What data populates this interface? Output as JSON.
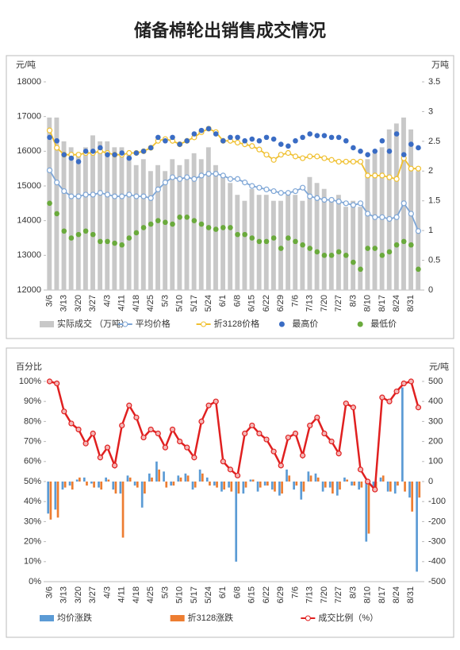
{
  "title": "储备棉轮出销售成交情况",
  "chart_data": [
    {
      "type": "combo",
      "ylabel": "元/吨",
      "y2label": "万吨",
      "categories": [
        "3/6",
        null,
        "3/13",
        null,
        "3/20",
        null,
        "3/27",
        null,
        "4/3",
        null,
        "4/11",
        null,
        "4/18",
        null,
        "4/25",
        null,
        "5/3",
        null,
        "5/10",
        null,
        "5/17",
        null,
        "5/24",
        null,
        "6/1",
        null,
        "6/8",
        null,
        "6/15",
        null,
        "6/22",
        null,
        "6/29",
        null,
        "7/6",
        null,
        "7/13",
        null,
        "7/20",
        null,
        "7/27",
        null,
        "8/3",
        null,
        "8/10",
        null,
        "8/17",
        null,
        "8/24",
        null,
        "8/31",
        null
      ],
      "ylim": [
        12000,
        18000
      ],
      "yticks": [
        12000,
        13000,
        14000,
        15000,
        16000,
        17000,
        18000
      ],
      "y2lim": [
        0,
        3.5
      ],
      "y2ticks": [
        0,
        0.5,
        1,
        1.5,
        2,
        2.5,
        3,
        3.5
      ],
      "series": [
        {
          "name": "实际成交 （万吨）",
          "type": "bar",
          "axis": "y2",
          "color": "#c8c8c8",
          "values": [
            2.9,
            2.9,
            2.5,
            2.4,
            2.3,
            2.4,
            2.6,
            2.5,
            2.5,
            2.4,
            2.4,
            2.3,
            2.1,
            2.2,
            2.0,
            2.1,
            2.0,
            2.2,
            2.1,
            2.2,
            2.3,
            2.2,
            2.4,
            2.1,
            1.9,
            1.8,
            1.6,
            1.5,
            1.7,
            1.6,
            1.6,
            1.5,
            1.5,
            1.6,
            1.6,
            1.5,
            1.9,
            1.8,
            1.7,
            1.5,
            1.6,
            1.4,
            1.5,
            1.4,
            2.2,
            2.3,
            2.4,
            2.7,
            2.8,
            2.9,
            2.7,
            2.0
          ]
        },
        {
          "name": "平均价格",
          "type": "line",
          "color": "#7ea6d6",
          "values": [
            15450,
            15100,
            14850,
            14700,
            14700,
            14750,
            14750,
            14800,
            14750,
            14700,
            14700,
            14750,
            14700,
            14700,
            14650,
            14900,
            15100,
            15250,
            15200,
            15250,
            15200,
            15300,
            15350,
            15350,
            15300,
            15200,
            15200,
            15100,
            15000,
            14950,
            14900,
            14850,
            14800,
            14800,
            14850,
            14950,
            14700,
            14650,
            14600,
            14600,
            14550,
            14500,
            14450,
            14500,
            14200,
            14100,
            14100,
            14050,
            14100,
            14500,
            14200,
            13700
          ]
        },
        {
          "name": "折3128价格",
          "type": "line",
          "color": "#f0c030",
          "values": [
            16600,
            16100,
            15900,
            15900,
            15900,
            15950,
            15950,
            16000,
            15950,
            15900,
            15900,
            15950,
            15950,
            16000,
            16100,
            16300,
            16350,
            16300,
            16200,
            16300,
            16400,
            16550,
            16650,
            16550,
            16300,
            16300,
            16250,
            16200,
            16150,
            16050,
            15900,
            15750,
            15900,
            15950,
            15850,
            15800,
            15850,
            15850,
            15800,
            15750,
            15700,
            15700,
            15700,
            15700,
            15300,
            15300,
            15300,
            15250,
            15200,
            15800,
            15500,
            15500
          ]
        },
        {
          "name": "最高价",
          "type": "scatter",
          "color": "#3a6cc4",
          "values": [
            16400,
            16300,
            15900,
            15800,
            15700,
            16000,
            16000,
            16100,
            15900,
            15900,
            15950,
            15800,
            15950,
            16000,
            16100,
            16400,
            16300,
            16400,
            16200,
            16300,
            16500,
            16600,
            16650,
            16500,
            16300,
            16400,
            16400,
            16300,
            16350,
            16300,
            16400,
            16350,
            16200,
            16150,
            16300,
            16400,
            16500,
            16450,
            16450,
            16400,
            16400,
            16300,
            16100,
            16000,
            15900,
            16000,
            16300,
            16000,
            16500,
            15900,
            16200,
            16100
          ]
        },
        {
          "name": "最低价",
          "type": "scatter",
          "color": "#6aaa3c",
          "values": [
            14500,
            14200,
            13700,
            13500,
            13600,
            13700,
            13600,
            13400,
            13400,
            13350,
            13300,
            13500,
            13650,
            13800,
            13900,
            14000,
            13950,
            13900,
            14100,
            14100,
            14000,
            13900,
            13800,
            13750,
            13800,
            13800,
            13600,
            13600,
            13500,
            13400,
            13400,
            13500,
            13200,
            13500,
            13400,
            13300,
            13200,
            13100,
            13000,
            13000,
            13100,
            13000,
            12800,
            12600,
            13200,
            13200,
            13000,
            13100,
            13300,
            13400,
            13300,
            12600
          ]
        }
      ]
    },
    {
      "type": "combo",
      "ylabel": "百分比",
      "y2label": "元/吨",
      "categories": [
        "3/6",
        null,
        "3/13",
        null,
        "3/20",
        null,
        "3/27",
        null,
        "4/3",
        null,
        "4/11",
        null,
        "4/18",
        null,
        "4/25",
        null,
        "5/3",
        null,
        "5/10",
        null,
        "5/17",
        null,
        "5/24",
        null,
        "6/1",
        null,
        "6/8",
        null,
        "6/15",
        null,
        "6/22",
        null,
        "6/29",
        null,
        "7/6",
        null,
        "7/13",
        null,
        "7/20",
        null,
        "7/27",
        null,
        "8/3",
        null,
        "8/10",
        null,
        "8/17",
        null,
        "8/24",
        null,
        "8/31",
        null
      ],
      "ylim": [
        0,
        100
      ],
      "yticks": [
        {
          "value": 0,
          "label": "0%"
        },
        {
          "value": 10,
          "label": "10%"
        },
        {
          "value": 20,
          "label": "20%"
        },
        {
          "value": 30,
          "label": "30%"
        },
        {
          "value": 40,
          "label": "40%"
        },
        {
          "value": 50,
          "label": "50%"
        },
        {
          "value": 60,
          "label": "60%"
        },
        {
          "value": 70,
          "label": "70%"
        },
        {
          "value": 80,
          "label": "80%"
        },
        {
          "value": 90,
          "label": "90%"
        },
        {
          "value": 100,
          "label": "100%"
        }
      ],
      "y2lim": [
        -500,
        500
      ],
      "y2ticks": [
        -500,
        -400,
        -300,
        -200,
        -100,
        0,
        100,
        200,
        300,
        400,
        500
      ],
      "series": [
        {
          "name": "均价涨跌",
          "type": "bar",
          "axis": "y2",
          "color": "#5b9bd5",
          "values": [
            -160,
            -140,
            -40,
            -20,
            10,
            20,
            -10,
            -30,
            20,
            -40,
            -60,
            30,
            -20,
            -130,
            40,
            100,
            50,
            -20,
            30,
            40,
            -40,
            60,
            20,
            -20,
            -50,
            -30,
            -400,
            -60,
            10,
            -50,
            -20,
            -40,
            -70,
            60,
            -40,
            -90,
            50,
            40,
            -50,
            -30,
            -70,
            20,
            -20,
            -40,
            -300,
            -30,
            20,
            -50,
            -60,
            470,
            -80,
            -450
          ]
        },
        {
          "name": "折3128涨跌",
          "type": "bar",
          "axis": "y2",
          "color": "#ed7d31",
          "values": [
            -190,
            -180,
            -30,
            -40,
            20,
            -20,
            -30,
            -40,
            10,
            -60,
            -280,
            20,
            -30,
            -60,
            20,
            60,
            -30,
            -20,
            20,
            30,
            -30,
            40,
            -20,
            -30,
            -40,
            -50,
            -60,
            -30,
            10,
            -30,
            -20,
            -50,
            -60,
            30,
            -20,
            -50,
            30,
            20,
            -30,
            -60,
            -40,
            10,
            -20,
            -30,
            -260,
            -40,
            30,
            -50,
            -20,
            -50,
            -150,
            -80
          ]
        },
        {
          "name": "成交比例（%）",
          "type": "line",
          "color": "#e02020",
          "values": [
            100,
            99,
            85,
            79,
            76,
            69,
            74,
            62,
            67,
            58,
            78,
            88,
            82,
            72,
            76,
            74,
            67,
            76,
            70,
            67,
            62,
            80,
            88,
            90,
            60,
            56,
            53,
            74,
            78,
            74,
            71,
            65,
            58,
            72,
            74,
            63,
            78,
            82,
            74,
            70,
            64,
            89,
            87,
            56,
            50,
            46,
            92,
            90,
            95,
            99,
            100,
            87
          ]
        }
      ]
    }
  ]
}
